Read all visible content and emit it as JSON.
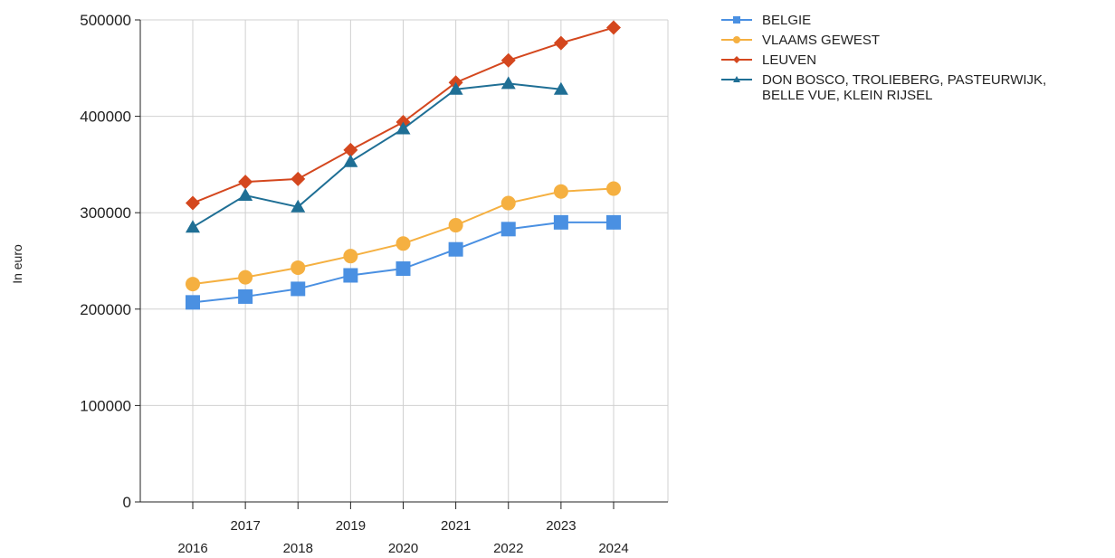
{
  "chart_data": {
    "type": "line",
    "title": "",
    "xlabel": "",
    "ylabel": "In euro",
    "x": [
      "2016",
      "2017",
      "2018",
      "2019",
      "2020",
      "2021",
      "2022",
      "2023",
      "2024"
    ],
    "ylim": [
      0,
      500000
    ],
    "yticks": [
      "0",
      "100000",
      "200000",
      "300000",
      "400000",
      "500000"
    ],
    "grid": true,
    "legend_position": "right",
    "series": [
      {
        "name": "BELGIE",
        "color": "#4a90e2",
        "marker": "square",
        "values": [
          207000,
          213000,
          221000,
          235000,
          242000,
          262000,
          283000,
          290000,
          290000
        ]
      },
      {
        "name": "VLAAMS GEWEST",
        "color": "#f5b041",
        "marker": "circle",
        "values": [
          226000,
          233000,
          243000,
          255000,
          268000,
          287000,
          310000,
          322000,
          325000
        ]
      },
      {
        "name": "LEUVEN",
        "color": "#d4471e",
        "marker": "diamond",
        "values": [
          310000,
          332000,
          335000,
          365000,
          394000,
          435000,
          458000,
          476000,
          492000
        ]
      },
      {
        "name": "DON BOSCO, TROLIEBERG, PASTEURWIJK, BELLE VUE, KLEIN RIJSEL",
        "name_lines": [
          "DON BOSCO, TROLIEBERG, PASTEURWIJK,",
          "BELLE VUE, KLEIN RIJSEL"
        ],
        "color": "#1f6f95",
        "marker": "triangle",
        "values": [
          285000,
          318000,
          306000,
          353000,
          387000,
          428000,
          434000,
          428000,
          null
        ]
      }
    ]
  }
}
